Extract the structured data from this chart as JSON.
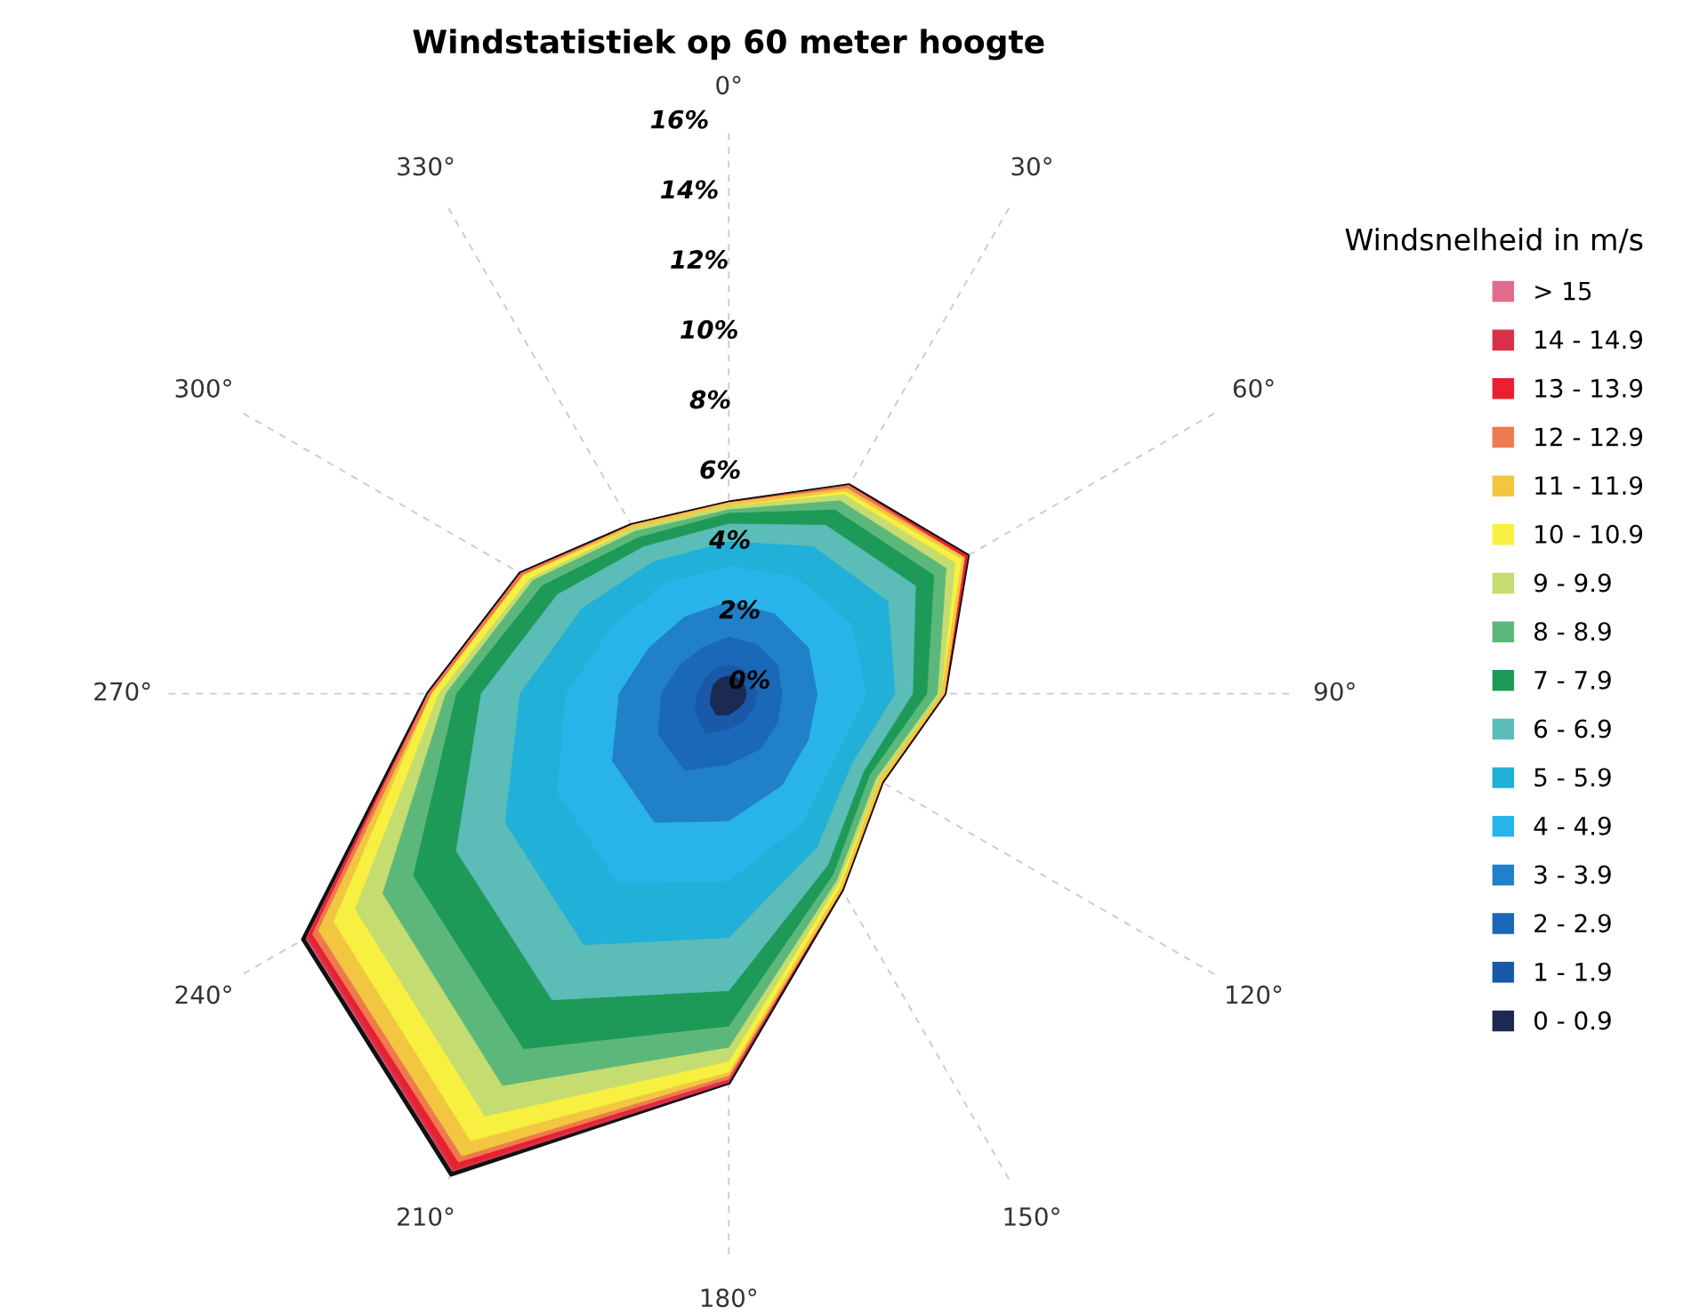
{
  "chart_data": {
    "type": "radar",
    "title": "Windstatistiek op 60 meter hoogte",
    "legend_title": "Windsnelheid in m/s",
    "categories": [
      "0°",
      "30°",
      "60°",
      "90°",
      "120°",
      "150°",
      "180°",
      "210°",
      "240°",
      "270°",
      "300°",
      "330°"
    ],
    "ylim": [
      0,
      16
    ],
    "yticks": [
      {
        "value": 0,
        "label": "0%"
      },
      {
        "value": 2,
        "label": "2%"
      },
      {
        "value": 4,
        "label": "4%"
      },
      {
        "value": 6,
        "label": "6%"
      },
      {
        "value": 8,
        "label": "8%"
      },
      {
        "value": 10,
        "label": "10%"
      },
      {
        "value": 12,
        "label": "12%"
      },
      {
        "value": 14,
        "label": "14%"
      },
      {
        "value": 16,
        "label": "16%"
      }
    ],
    "grid": "x",
    "legend": "right",
    "series": [
      {
        "name": "> 15",
        "color": "#e06c8c",
        "values": [
          5.4,
          6.8,
          7.8,
          6.1,
          5.0,
          6.4,
          11.0,
          15.7,
          13.9,
          8.5,
          6.8,
          5.5
        ]
      },
      {
        "name": "14 - 14.9",
        "color": "#d9304a",
        "values": [
          5.4,
          6.8,
          7.8,
          6.1,
          5.0,
          6.4,
          11.0,
          15.6,
          13.8,
          8.5,
          6.8,
          5.5
        ]
      },
      {
        "name": "13 - 13.9",
        "color": "#e8202f",
        "values": [
          5.4,
          6.8,
          7.8,
          6.1,
          5.0,
          6.4,
          10.9,
          15.5,
          13.7,
          8.5,
          6.8,
          5.5
        ]
      },
      {
        "name": "12 - 12.9",
        "color": "#ee7a50",
        "values": [
          5.4,
          6.8,
          7.7,
          6.1,
          5.0,
          6.4,
          10.9,
          15.3,
          13.6,
          8.5,
          6.8,
          5.5
        ]
      },
      {
        "name": "11 - 11.9",
        "color": "#f2c640",
        "values": [
          5.4,
          6.7,
          7.7,
          6.1,
          5.0,
          6.4,
          10.8,
          15.1,
          13.4,
          8.4,
          6.7,
          5.5
        ]
      },
      {
        "name": "10 - 10.9",
        "color": "#f8f040",
        "values": [
          5.3,
          6.6,
          7.6,
          6.0,
          4.9,
          6.3,
          10.7,
          14.6,
          12.9,
          8.4,
          6.7,
          5.4
        ]
      },
      {
        "name": "9 - 9.9",
        "color": "#c4dc70",
        "values": [
          5.3,
          6.5,
          7.4,
          6.0,
          4.9,
          6.2,
          10.4,
          13.8,
          12.2,
          8.2,
          6.5,
          5.4
        ]
      },
      {
        "name": "8 - 8.9",
        "color": "#5cb87a",
        "values": [
          5.2,
          6.3,
          7.1,
          5.9,
          4.8,
          6.1,
          10.0,
          12.8,
          11.3,
          8.0,
          6.4,
          5.3
        ]
      },
      {
        "name": "7 - 7.9",
        "color": "#1e9a58",
        "values": [
          5.1,
          6.0,
          6.7,
          5.6,
          4.6,
          5.9,
          9.4,
          11.6,
          10.3,
          7.7,
          6.1,
          5.1
        ]
      },
      {
        "name": "6 - 6.9",
        "color": "#5cbcb8",
        "values": [
          4.8,
          5.5,
          6.1,
          5.2,
          4.4,
          5.6,
          8.4,
          10.0,
          8.9,
          7.0,
          5.6,
          4.8
        ]
      },
      {
        "name": "5 - 5.9",
        "color": "#20b0d8",
        "values": [
          4.3,
          4.8,
          5.2,
          4.7,
          4.0,
          5.0,
          6.9,
          8.2,
          7.3,
          5.9,
          4.8,
          4.3
        ]
      },
      {
        "name": "4 - 4.9",
        "color": "#28b4e8",
        "values": [
          3.6,
          3.8,
          4.0,
          3.9,
          3.5,
          4.2,
          5.3,
          6.2,
          5.6,
          4.6,
          3.8,
          3.6
        ]
      },
      {
        "name": "3 - 3.9",
        "color": "#2080c8",
        "values": [
          2.6,
          2.6,
          2.6,
          2.5,
          2.6,
          3.0,
          3.6,
          4.2,
          3.8,
          3.1,
          2.6,
          2.5
        ]
      },
      {
        "name": "2 - 2.9",
        "color": "#1a68b8",
        "values": [
          1.6,
          1.6,
          1.6,
          1.5,
          1.6,
          1.8,
          2.0,
          2.5,
          2.3,
          1.9,
          1.6,
          1.5
        ]
      },
      {
        "name": "1 - 1.9",
        "color": "#1a58a8",
        "values": [
          0.8,
          0.8,
          0.8,
          0.8,
          0.8,
          0.9,
          1.0,
          1.3,
          1.1,
          0.9,
          0.8,
          0.8
        ]
      },
      {
        "name": "0 - 0.9",
        "color": "#1a2a50",
        "values": [
          0.5,
          0.5,
          0.5,
          0.5,
          0.5,
          0.5,
          0.6,
          0.7,
          0.6,
          0.5,
          0.5,
          0.5
        ]
      }
    ]
  }
}
